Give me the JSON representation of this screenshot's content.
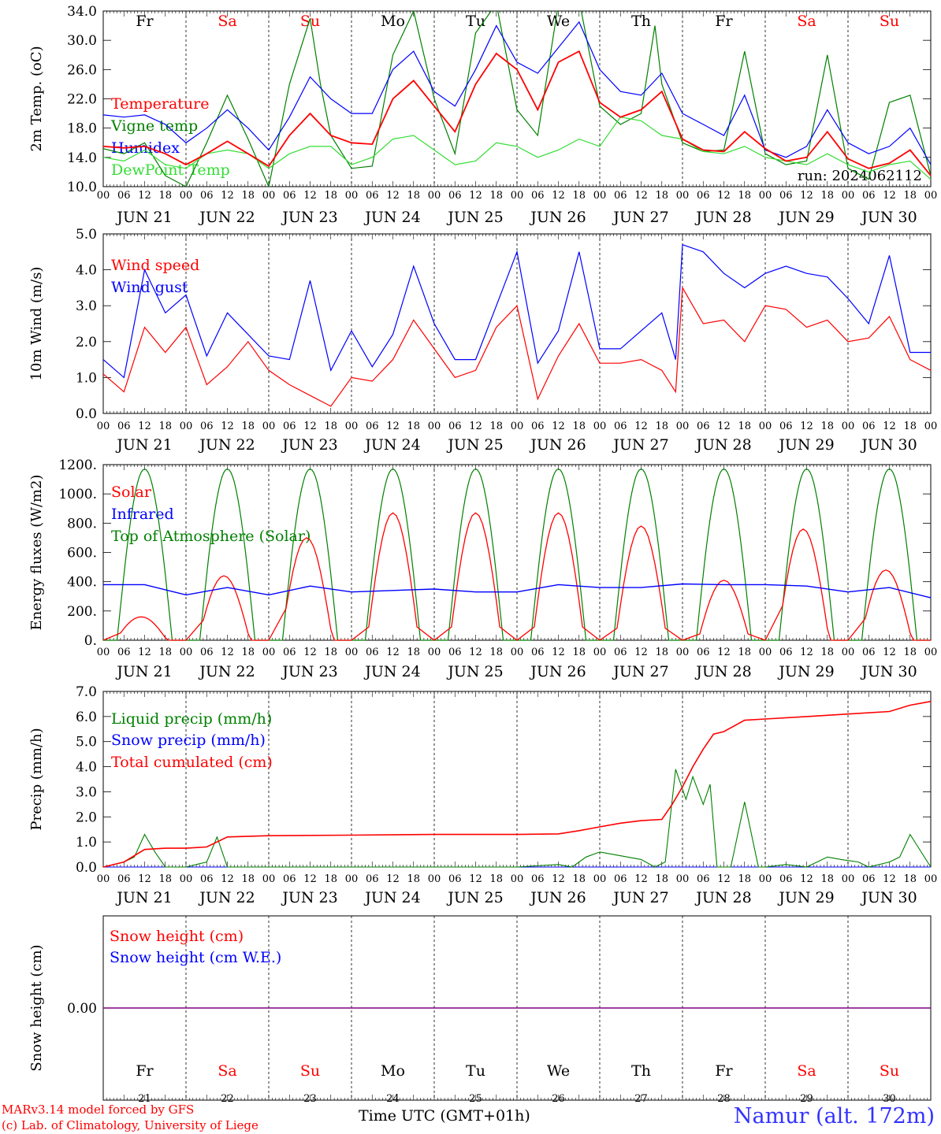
{
  "colors": {
    "red": "#ff0000",
    "green": "#008000",
    "blue": "#0000ff",
    "lime": "#33dd33",
    "purple": "#800080",
    "black": "#000000"
  },
  "days": {
    "dates": [
      "JUN 21",
      "JUN 22",
      "JUN 23",
      "JUN 24",
      "JUN 25",
      "JUN 26",
      "JUN 27",
      "JUN 28",
      "JUN 29",
      "JUN 30"
    ],
    "weekdays": [
      "Fr",
      "Sa",
      "Su",
      "Mo",
      "Tu",
      "We",
      "Th",
      "Fr",
      "Sa",
      "Su"
    ],
    "weekend": [
      false,
      true,
      true,
      false,
      false,
      false,
      false,
      false,
      true,
      true
    ],
    "numbers": [
      "21",
      "22",
      "23",
      "24",
      "25",
      "26",
      "27",
      "28",
      "29",
      "30"
    ],
    "hour_labels": [
      "00",
      "06",
      "12",
      "18"
    ],
    "end_hour_label": "00"
  },
  "footer": {
    "credit_line1": "MARv3.14 model forced by GFS",
    "credit_line2": "(c) Lab. of Climatology, University of Liege",
    "x_title": "Time UTC (GMT+01h)",
    "station": "Namur (alt. 172m)"
  },
  "chart_data": [
    {
      "type": "line",
      "ylabel": "2m Temp. (oC)",
      "ylim": [
        10.0,
        34.0
      ],
      "yticks": [
        "10.0",
        "14.0",
        "18.0",
        "22.0",
        "26.0",
        "30.0",
        "34.0"
      ],
      "x_unit": "hours since 00 UTC JUN 21",
      "xlim": [
        0,
        240
      ],
      "annotation": "run: 2024062112",
      "series": [
        {
          "name": "Temperature",
          "color": "#ff0000",
          "x": [
            0,
            6,
            12,
            18,
            24,
            30,
            36,
            42,
            48,
            54,
            60,
            66,
            72,
            78,
            84,
            90,
            96,
            102,
            108,
            114,
            120,
            126,
            132,
            138,
            144,
            150,
            156,
            162,
            168,
            174,
            180,
            186,
            192,
            198,
            204,
            210,
            216,
            222,
            228,
            234,
            240
          ],
          "y": [
            15.5,
            15.3,
            15.5,
            14.5,
            13.0,
            14.5,
            16.2,
            14.5,
            12.8,
            17.0,
            20.0,
            17.0,
            16.0,
            15.8,
            22.0,
            24.5,
            21.0,
            17.5,
            24.0,
            28.2,
            26.0,
            20.5,
            27.0,
            28.5,
            21.5,
            19.5,
            20.5,
            23.0,
            16.5,
            15.0,
            14.8,
            17.5,
            15.2,
            13.5,
            14.0,
            17.5,
            13.8,
            12.5,
            13.2,
            15.0,
            11.5
          ]
        },
        {
          "name": "Vigne temp",
          "color": "#008000",
          "x": [
            0,
            6,
            12,
            18,
            24,
            30,
            36,
            42,
            48,
            54,
            60,
            63,
            66,
            72,
            78,
            84,
            90,
            96,
            102,
            108,
            114,
            120,
            126,
            132,
            138,
            144,
            150,
            156,
            160,
            162,
            168,
            174,
            180,
            186,
            192,
            198,
            204,
            210,
            216,
            222,
            228,
            234,
            240
          ],
          "y": [
            15.2,
            14.5,
            16.0,
            11.5,
            10.0,
            16.0,
            22.5,
            16.5,
            10.0,
            24.0,
            33.0,
            24.0,
            17.0,
            12.5,
            12.8,
            28.0,
            34.0,
            22.0,
            14.5,
            31.0,
            35.0,
            20.5,
            17.0,
            35.0,
            35.5,
            21.0,
            18.5,
            20.0,
            32.0,
            24.0,
            16.0,
            14.8,
            15.0,
            28.5,
            14.5,
            13.0,
            13.5,
            28.0,
            12.5,
            11.0,
            21.5,
            22.5,
            11.5
          ]
        },
        {
          "name": "Humidex",
          "color": "#0000ff",
          "x": [
            0,
            6,
            12,
            18,
            24,
            30,
            36,
            42,
            48,
            54,
            60,
            66,
            72,
            78,
            84,
            90,
            96,
            102,
            108,
            114,
            120,
            126,
            132,
            138,
            144,
            150,
            156,
            162,
            168,
            174,
            180,
            186,
            192,
            198,
            204,
            210,
            216,
            222,
            228,
            234,
            240
          ],
          "y": [
            19.8,
            19.5,
            19.8,
            18.5,
            16.0,
            18.0,
            20.5,
            18.0,
            15.0,
            19.5,
            25.0,
            22.0,
            20.0,
            20.0,
            26.0,
            28.5,
            23.0,
            21.0,
            26.0,
            32.0,
            27.0,
            25.5,
            29.0,
            32.5,
            26.0,
            23.0,
            22.5,
            25.5,
            20.0,
            18.5,
            17.0,
            22.5,
            15.0,
            14.0,
            15.5,
            20.5,
            16.0,
            14.5,
            15.5,
            18.0,
            13.0
          ]
        },
        {
          "name": "DewPoint Temp",
          "color": "#33dd33",
          "x": [
            0,
            6,
            12,
            18,
            24,
            30,
            36,
            42,
            48,
            54,
            60,
            66,
            72,
            78,
            84,
            90,
            96,
            102,
            108,
            114,
            120,
            126,
            132,
            138,
            144,
            150,
            156,
            162,
            168,
            174,
            180,
            186,
            192,
            198,
            204,
            210,
            216,
            222,
            228,
            234,
            240
          ],
          "y": [
            14.0,
            13.5,
            15.0,
            13.0,
            12.5,
            14.5,
            15.0,
            14.5,
            12.5,
            14.5,
            15.5,
            15.5,
            13.0,
            14.0,
            16.5,
            17.0,
            15.0,
            13.0,
            13.5,
            16.0,
            15.5,
            14.0,
            15.0,
            16.5,
            15.5,
            19.5,
            19.0,
            17.0,
            16.5,
            14.8,
            14.5,
            15.5,
            14.0,
            13.5,
            13.0,
            14.5,
            13.0,
            12.0,
            13.0,
            13.5,
            11.0
          ]
        }
      ]
    },
    {
      "type": "line",
      "ylabel": "10m Wind (m/s)",
      "ylim": [
        0.0,
        5.0
      ],
      "yticks": [
        "0.0",
        "1.0",
        "2.0",
        "3.0",
        "4.0",
        "5.0"
      ],
      "x_unit": "hours since 00 UTC JUN 21",
      "xlim": [
        0,
        240
      ],
      "series": [
        {
          "name": "Wind speed",
          "color": "#ff0000",
          "x": [
            0,
            6,
            12,
            18,
            24,
            30,
            36,
            42,
            48,
            54,
            60,
            66,
            72,
            78,
            84,
            90,
            96,
            102,
            108,
            114,
            120,
            126,
            132,
            138,
            144,
            150,
            156,
            162,
            166,
            168,
            174,
            180,
            186,
            192,
            198,
            204,
            210,
            216,
            222,
            228,
            234,
            240
          ],
          "y": [
            1.1,
            0.6,
            2.4,
            1.7,
            2.4,
            0.8,
            1.3,
            2.0,
            1.2,
            0.8,
            0.5,
            0.2,
            1.0,
            0.9,
            1.5,
            2.6,
            1.8,
            1.0,
            1.2,
            2.4,
            3.0,
            0.4,
            1.6,
            2.5,
            1.4,
            1.4,
            1.5,
            1.2,
            0.6,
            3.5,
            2.5,
            2.6,
            2.0,
            3.0,
            2.9,
            2.4,
            2.6,
            2.0,
            2.1,
            2.7,
            1.5,
            1.2
          ]
        },
        {
          "name": "Wind gust",
          "color": "#0000ff",
          "x": [
            0,
            6,
            12,
            18,
            24,
            30,
            36,
            42,
            48,
            54,
            60,
            66,
            72,
            78,
            84,
            90,
            96,
            102,
            108,
            114,
            120,
            126,
            132,
            138,
            144,
            150,
            156,
            162,
            166,
            168,
            174,
            180,
            186,
            192,
            198,
            204,
            210,
            216,
            222,
            228,
            234,
            240
          ],
          "y": [
            1.5,
            1.0,
            4.0,
            2.8,
            3.3,
            1.6,
            2.8,
            2.2,
            1.6,
            1.5,
            3.7,
            1.2,
            2.3,
            1.3,
            2.2,
            4.1,
            2.5,
            1.5,
            1.5,
            3.0,
            4.5,
            1.4,
            2.3,
            4.5,
            1.8,
            1.8,
            2.3,
            2.8,
            1.5,
            4.7,
            4.5,
            3.9,
            3.5,
            3.9,
            4.1,
            3.9,
            3.8,
            3.2,
            2.5,
            4.4,
            1.7,
            1.7
          ]
        }
      ]
    },
    {
      "type": "line",
      "ylabel": "Energy fluxes (W/m2)",
      "ylim": [
        0,
        1200
      ],
      "yticks": [
        "0.",
        "200.",
        "400.",
        "600.",
        "800.",
        "1000.",
        "1200."
      ],
      "x_unit": "hours since 00 UTC JUN 21",
      "xlim": [
        0,
        240
      ],
      "series": [
        {
          "name": "Solar",
          "color": "#ff0000",
          "day_peak_hours": [
            11,
            11,
            11,
            12,
            12,
            12,
            12,
            12,
            11,
            11
          ],
          "day_peak_values": [
            160,
            440,
            700,
            870,
            870,
            870,
            780,
            410,
            760,
            480
          ]
        },
        {
          "name": "Infrared",
          "color": "#0000ff",
          "x": [
            0,
            12,
            24,
            36,
            48,
            60,
            72,
            84,
            96,
            108,
            120,
            132,
            144,
            156,
            168,
            180,
            192,
            204,
            216,
            228,
            240
          ],
          "y": [
            380,
            380,
            310,
            360,
            310,
            370,
            330,
            340,
            350,
            330,
            330,
            380,
            360,
            360,
            385,
            380,
            380,
            370,
            330,
            360,
            290
          ]
        },
        {
          "name": "Top of Atmosphere (Solar)",
          "color": "#008000",
          "day_start_hour": 4,
          "day_end_hour": 20,
          "peak": 1170
        }
      ]
    },
    {
      "type": "line",
      "ylabel": "Precip (mm/h)",
      "ylim": [
        0.0,
        7.0
      ],
      "yticks": [
        "0.0",
        "1.0",
        "2.0",
        "3.0",
        "4.0",
        "5.0",
        "6.0",
        "7.0"
      ],
      "x_unit": "hours since 00 UTC JUN 21",
      "xlim": [
        0,
        240
      ],
      "series": [
        {
          "name": "Liquid precip (mm/h)",
          "color": "#008000",
          "x": [
            0,
            6,
            9,
            12,
            15,
            18,
            24,
            30,
            33,
            36,
            42,
            48,
            60,
            72,
            84,
            96,
            108,
            120,
            132,
            136,
            140,
            144,
            148,
            156,
            160,
            163,
            166,
            169,
            171,
            174,
            176,
            178,
            180,
            182,
            186,
            190,
            192,
            198,
            204,
            210,
            214,
            219,
            222,
            228,
            231,
            234,
            240
          ],
          "y": [
            0.0,
            0.2,
            0.4,
            1.3,
            0.6,
            0.0,
            0.0,
            0.2,
            1.2,
            0.0,
            0.0,
            0.0,
            0.0,
            0.0,
            0.0,
            0.0,
            0.0,
            0.0,
            0.1,
            0.0,
            0.4,
            0.6,
            0.5,
            0.3,
            0.0,
            0.2,
            3.9,
            2.7,
            3.6,
            2.5,
            3.3,
            0.0,
            0.0,
            0.0,
            2.6,
            0.0,
            0.0,
            0.1,
            0.0,
            0.4,
            0.3,
            0.2,
            0.0,
            0.2,
            0.4,
            1.3,
            0.0
          ]
        },
        {
          "name": "Snow precip (mm/h)",
          "color": "#0000ff",
          "x": [
            0,
            240
          ],
          "y": [
            0,
            0
          ]
        },
        {
          "name": "Total cumulated (cm)",
          "color": "#ff0000",
          "x": [
            0,
            6,
            12,
            18,
            24,
            30,
            36,
            48,
            72,
            96,
            120,
            132,
            138,
            144,
            150,
            156,
            162,
            165,
            168,
            171,
            174,
            177,
            180,
            186,
            192,
            204,
            216,
            228,
            234,
            240
          ],
          "y": [
            0.0,
            0.2,
            0.7,
            0.75,
            0.75,
            0.8,
            1.2,
            1.25,
            1.27,
            1.3,
            1.3,
            1.32,
            1.45,
            1.6,
            1.75,
            1.85,
            1.9,
            2.5,
            3.2,
            4.0,
            4.7,
            5.3,
            5.4,
            5.85,
            5.9,
            6.0,
            6.1,
            6.2,
            6.45,
            6.6
          ]
        }
      ]
    },
    {
      "type": "line",
      "ylabel": "Snow height (cm)",
      "yticks": [
        "0.00"
      ],
      "ylim": [
        -1,
        1
      ],
      "x_unit": "hours since 00 UTC JUN 21",
      "xlim": [
        0,
        240
      ],
      "series": [
        {
          "name": "Snow height (cm)",
          "color": "#ff0000",
          "x": [
            0,
            240
          ],
          "y": [
            0,
            0
          ]
        },
        {
          "name": "Snow height (cm W.E.)",
          "color": "#0000ff",
          "x": [
            0,
            240
          ],
          "y": [
            0,
            0
          ]
        }
      ]
    }
  ]
}
